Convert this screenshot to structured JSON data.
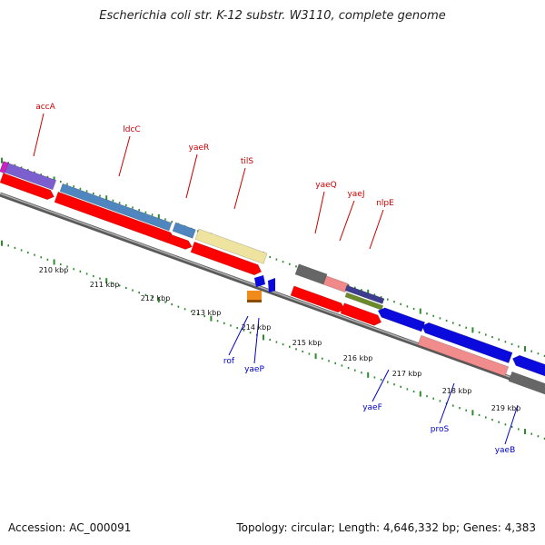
{
  "title": "Escherichia coli str. K-12 substr. W3110, complete genome",
  "footer": {
    "accession": "Accession: AC_000091",
    "summary": "Topology: circular; Length: 4,646,332 bp; Genes: 4,383"
  },
  "colors": {
    "backbone": "#8c8c8c",
    "tick": "#2e8b2e",
    "label_forward": "#cc0000",
    "label_reverse": "#0000cc"
  },
  "scale_ticks": [
    "210 kbp",
    "211 kbp",
    "212 kbp",
    "213 kbp",
    "214 kbp",
    "215 kbp",
    "216 kbp",
    "217 kbp",
    "218 kbp",
    "219 kbp"
  ],
  "genes_forward": [
    {
      "name": "accA",
      "color": "#7b5fcf"
    },
    {
      "name": "ldcC",
      "color": "#4f86c0"
    },
    {
      "name": "yaeR",
      "color": "#4f86c0"
    },
    {
      "name": "tilS",
      "color": "#eee4a0"
    },
    {
      "name": "yaeQ",
      "color": "#666666"
    },
    {
      "name": "yaeJ",
      "color": "#f08a8a"
    },
    {
      "name": "nlpE",
      "color": "#3d3d8f"
    }
  ],
  "genes_reverse": [
    {
      "name": "rof",
      "color": "#0a0adc"
    },
    {
      "name": "yaeP",
      "color": "#0a0adc"
    },
    {
      "name": "yaeF",
      "color": "#0a0adc"
    },
    {
      "name": "proS",
      "color": "#f09090"
    },
    {
      "name": "yaeB",
      "color": "#0a0adc"
    }
  ]
}
